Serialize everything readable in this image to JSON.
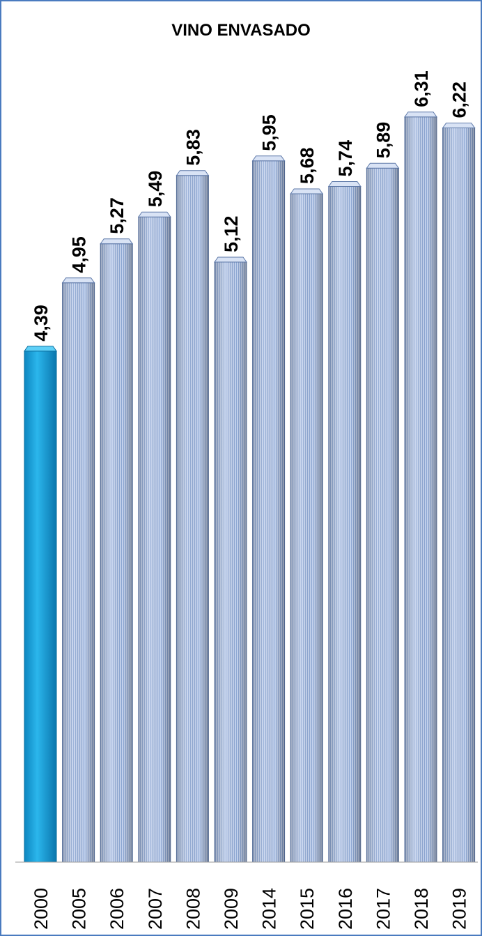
{
  "chart_data": {
    "type": "bar",
    "title": "VINO ENVASADO",
    "categories": [
      "2000",
      "2005",
      "2006",
      "2007",
      "2008",
      "2009",
      "2014",
      "2015",
      "2016",
      "2017",
      "2018",
      "2019"
    ],
    "values": [
      4.39,
      4.95,
      5.27,
      5.49,
      5.83,
      5.12,
      5.95,
      5.68,
      5.74,
      5.89,
      6.31,
      6.22
    ],
    "value_labels": [
      "4,39",
      "4,95",
      "5,27",
      "5,49",
      "5,83",
      "5,12",
      "5,95",
      "5,68",
      "5,74",
      "5,89",
      "6,31",
      "6,22"
    ],
    "highlighted_category": "2000",
    "xlabel": "",
    "ylabel": "",
    "grid": false,
    "legend": "none",
    "colors": {
      "highlight": "#1aa3dc",
      "bar": "#b7c8e8",
      "bar_stripe": "#7f9ccc",
      "frame": "#4a7bbf"
    }
  }
}
